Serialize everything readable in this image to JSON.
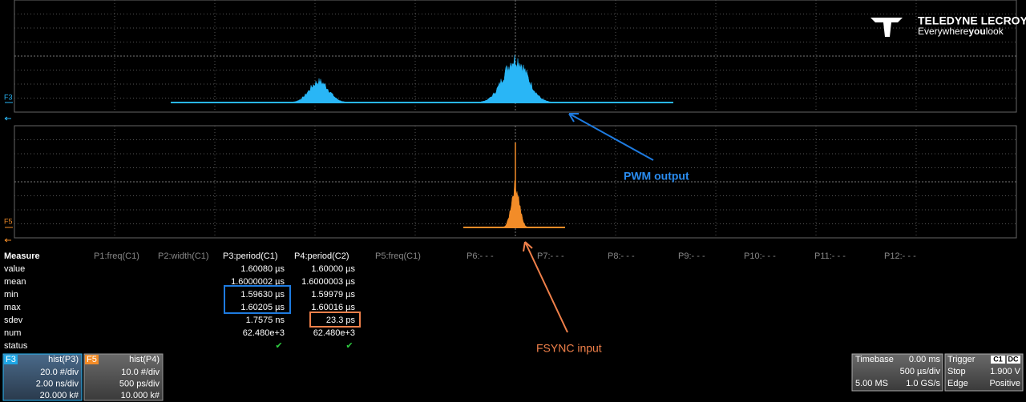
{
  "logo": {
    "brand": "TELEDYNE LECROY",
    "tagline": [
      "Everywhere",
      "you",
      "look"
    ]
  },
  "traces": {
    "upper": "F3",
    "lower": "F5"
  },
  "annotations": {
    "pwm": "PWM output",
    "fsync": "FSYNC input"
  },
  "measure": {
    "title": "Measure",
    "columns": [
      "P1:freq(C1)",
      "P2:width(C1)",
      "P3:period(C1)",
      "P4:period(C2)",
      "P5:freq(C1)",
      "P6:- - -",
      "P7:- - -",
      "P8:- - -",
      "P9:- - -",
      "P10:- - -",
      "P11:- - -",
      "P12:- - -"
    ],
    "rows": [
      {
        "label": "value",
        "p3": "1.60080 µs",
        "p4": "1.60000 µs"
      },
      {
        "label": "mean",
        "p3": "1.6000002 µs",
        "p4": "1.6000003 µs"
      },
      {
        "label": "min",
        "p3": "1.59630 µs",
        "p4": "1.59979 µs"
      },
      {
        "label": "max",
        "p3": "1.60205 µs",
        "p4": "1.60016 µs"
      },
      {
        "label": "sdev",
        "p3": "1.7575 ns",
        "p4": "23.3 ps"
      },
      {
        "label": "num",
        "p3": "62.480e+3",
        "p4": "62.480e+3"
      },
      {
        "label": "status",
        "p3": "✔",
        "p4": "✔"
      }
    ]
  },
  "channels": [
    {
      "tag": "F3",
      "title": "hist(P3)",
      "lines": [
        "20.0 #/div",
        "2.00 ns/div",
        "20.000 k#"
      ]
    },
    {
      "tag": "F5",
      "title": "hist(P4)",
      "lines": [
        "10.0 #/div",
        "500 ps/div",
        "10.000 k#"
      ]
    }
  ],
  "timebase": {
    "title": "Timebase",
    "delay": "0.00 ms",
    "scale": "500 µs/div",
    "samples": "5.00 MS",
    "rate": "1.0 GS/s"
  },
  "trigger": {
    "title": "Trigger",
    "source": "C1",
    "coupling": "DC",
    "mode": "Stop",
    "level": "1.900 V",
    "type": "Edge",
    "slope": "Positive"
  }
}
